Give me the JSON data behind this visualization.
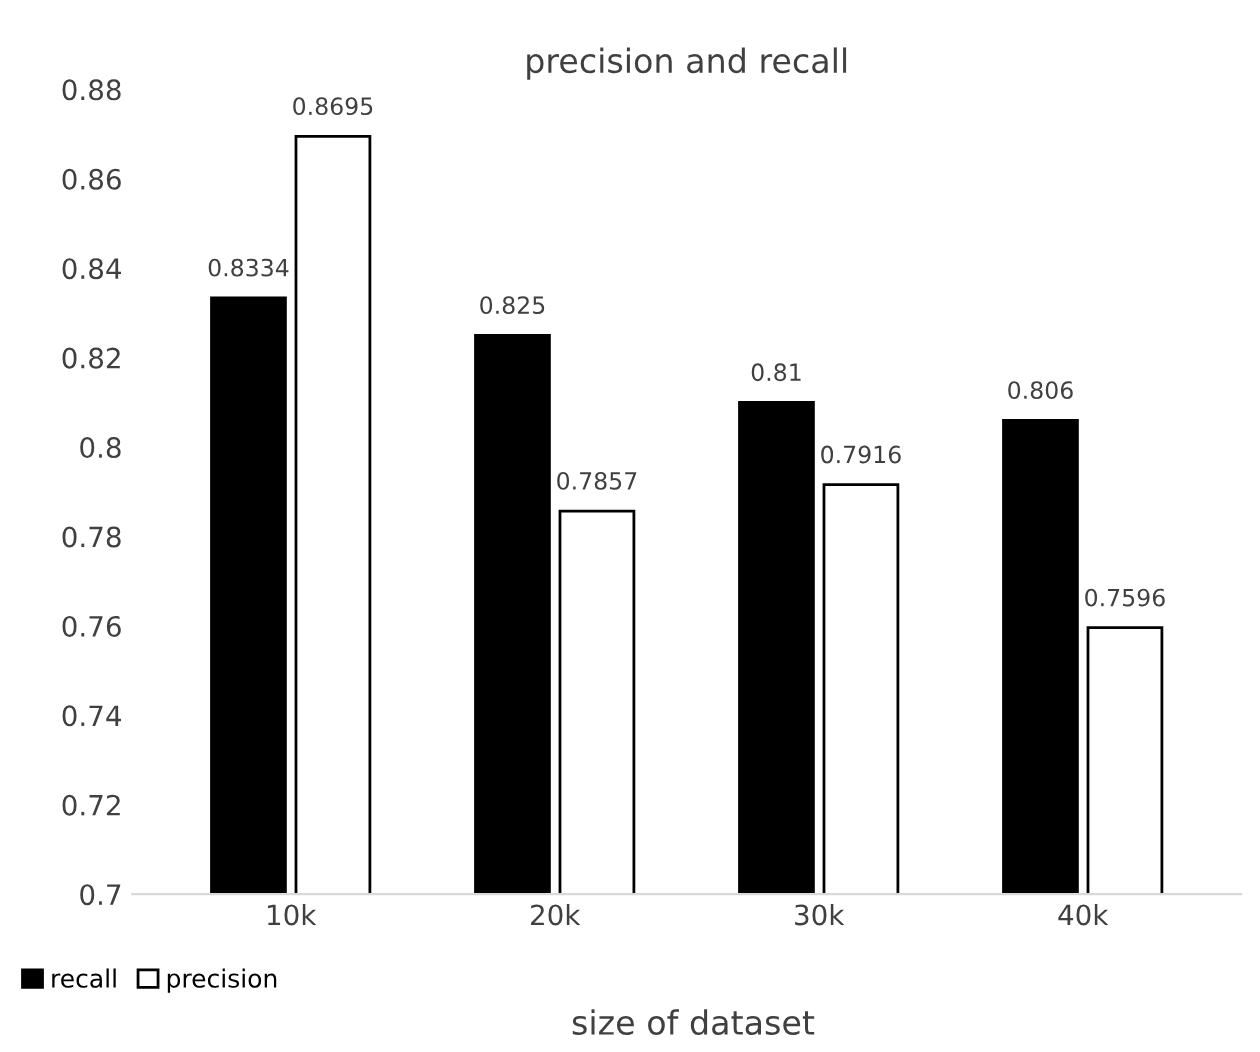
{
  "chart_data": {
    "type": "bar",
    "title": "precision and recall",
    "xlabel": "size of dataset",
    "categories": [
      "10k",
      "20k",
      "30k",
      "40k"
    ],
    "series": [
      {
        "name": "recall",
        "color": "#000000",
        "values": [
          0.8334,
          0.825,
          0.81,
          0.806
        ]
      },
      {
        "name": "precision",
        "color": "#ffffff",
        "values": [
          0.8695,
          0.7857,
          0.7916,
          0.7596
        ]
      }
    ],
    "ylim": [
      0.7,
      0.88
    ],
    "yticks": [
      0.7,
      0.72,
      0.74,
      0.76,
      0.78,
      0.8,
      0.82,
      0.84,
      0.86,
      0.88
    ],
    "data_labels": true,
    "grid": false,
    "legend": "bottom left"
  }
}
